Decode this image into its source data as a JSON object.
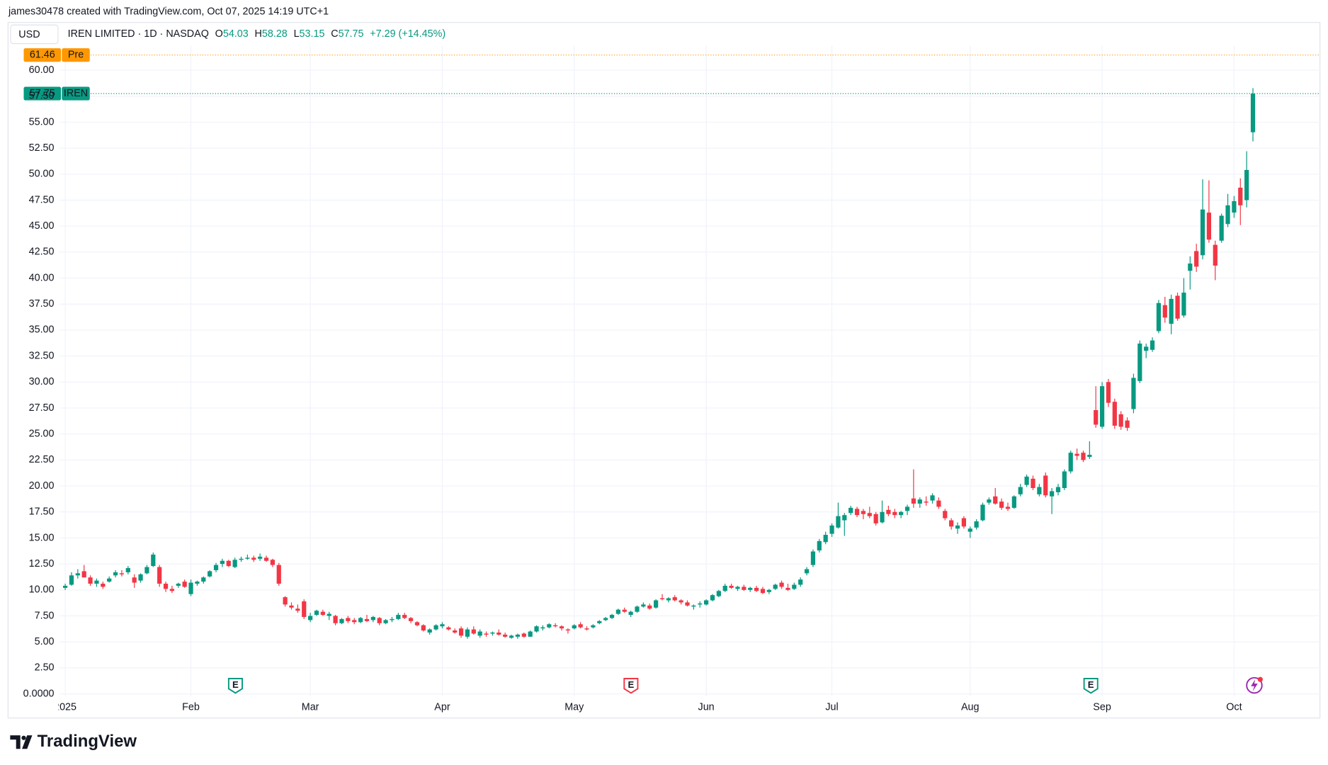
{
  "header": "james30478 created with TradingView.com, Oct 07, 2025 14:19 UTC+1",
  "footer": {
    "brand": "TradingView"
  },
  "chart_data": {
    "type": "candlestick",
    "currency": "USD",
    "symbol": "IREN LIMITED · 1D · NASDAQ",
    "legend": {
      "labels": [
        "O",
        "H",
        "L",
        "C"
      ],
      "values": [
        54.03,
        58.28,
        53.15,
        57.75
      ],
      "change": "+7.29 (+14.45%)"
    },
    "up_color": "#089981",
    "down_color": "#f23645",
    "grid": true,
    "price_lines": [
      {
        "value": 61.46,
        "tag": "Pre",
        "color": "#ff9800"
      },
      {
        "value": 57.75,
        "tag": "IREN",
        "color": "#089981"
      }
    ],
    "events": [
      "E",
      "E",
      "E"
    ],
    "ylim": [
      -0.2,
      62.4
    ],
    "yticks": [
      {
        "value": 0,
        "label": "0.0000"
      },
      {
        "value": 2.5,
        "label": "2.50"
      },
      {
        "value": 5,
        "label": "5.00"
      },
      {
        "value": 7.5,
        "label": "7.50"
      },
      {
        "value": 10,
        "label": "10.00"
      },
      {
        "value": 12.5,
        "label": "12.50"
      },
      {
        "value": 15,
        "label": "15.00"
      },
      {
        "value": 17.5,
        "label": "17.50"
      },
      {
        "value": 20,
        "label": "20.00"
      },
      {
        "value": 22.5,
        "label": "22.50"
      },
      {
        "value": 25,
        "label": "25.00"
      },
      {
        "value": 27.5,
        "label": "27.50"
      },
      {
        "value": 30,
        "label": "30.00"
      },
      {
        "value": 32.5,
        "label": "32.50"
      },
      {
        "value": 35,
        "label": "35.00"
      },
      {
        "value": 37.5,
        "label": "37.50"
      },
      {
        "value": 40,
        "label": "40.00"
      },
      {
        "value": 42.5,
        "label": "42.50"
      },
      {
        "value": 45,
        "label": "45.00"
      },
      {
        "value": 47.5,
        "label": "47.50"
      },
      {
        "value": 50,
        "label": "50.00"
      },
      {
        "value": 52.5,
        "label": "52.50"
      },
      {
        "value": 55,
        "label": "55.00"
      },
      {
        "value": 57.5,
        "label": "57.50"
      },
      {
        "value": 60,
        "label": "60.00"
      }
    ],
    "xticks": [
      {
        "value": 0,
        "label": "2025"
      },
      {
        "value": 20,
        "label": "Feb"
      },
      {
        "value": 39,
        "label": "Mar"
      },
      {
        "value": 60,
        "label": "Apr"
      },
      {
        "value": 81,
        "label": "May"
      },
      {
        "value": 102,
        "label": "Jun"
      },
      {
        "value": 122,
        "label": "Jul"
      },
      {
        "value": 144,
        "label": "Aug"
      },
      {
        "value": 165,
        "label": "Sep"
      },
      {
        "value": 186,
        "label": "Oct"
      }
    ],
    "candles": [
      [
        10.2,
        10.6,
        10.0,
        10.4
      ],
      [
        10.5,
        11.7,
        10.4,
        11.4
      ],
      [
        11.4,
        12.0,
        11.1,
        11.6
      ],
      [
        11.8,
        12.4,
        11.3,
        11.2
      ],
      [
        11.2,
        11.4,
        10.4,
        10.6
      ],
      [
        10.6,
        11.1,
        10.3,
        10.9
      ],
      [
        10.6,
        10.8,
        10.1,
        10.3
      ],
      [
        10.8,
        11.3,
        10.7,
        11.1
      ],
      [
        11.4,
        11.9,
        11.2,
        11.7
      ],
      [
        11.6,
        11.9,
        11.3,
        11.5
      ],
      [
        11.7,
        12.3,
        11.5,
        12.1
      ],
      [
        11.2,
        11.5,
        10.2,
        10.7
      ],
      [
        10.9,
        11.6,
        10.7,
        11.5
      ],
      [
        11.6,
        12.4,
        11.5,
        12.2
      ],
      [
        12.3,
        13.6,
        12.2,
        13.4
      ],
      [
        12.2,
        12.4,
        10.3,
        10.6
      ],
      [
        10.6,
        10.8,
        9.8,
        10.1
      ],
      [
        10.1,
        10.4,
        9.7,
        9.9
      ],
      [
        10.4,
        10.7,
        10.2,
        10.6
      ],
      [
        10.8,
        11.0,
        10.2,
        10.3
      ],
      [
        9.6,
        11.0,
        9.4,
        10.7
      ],
      [
        10.6,
        10.9,
        10.4,
        10.8
      ],
      [
        10.8,
        11.3,
        10.6,
        11.2
      ],
      [
        11.3,
        11.9,
        11.2,
        11.8
      ],
      [
        11.9,
        12.6,
        11.7,
        12.4
      ],
      [
        12.5,
        13.0,
        12.2,
        12.8
      ],
      [
        12.8,
        12.9,
        12.2,
        12.3
      ],
      [
        12.2,
        13.1,
        12.1,
        12.9
      ],
      [
        12.9,
        13.2,
        12.7,
        13.0
      ],
      [
        13.0,
        13.4,
        12.9,
        13.1
      ],
      [
        13.1,
        13.3,
        12.7,
        12.9
      ],
      [
        13.0,
        13.5,
        12.8,
        13.2
      ],
      [
        13.1,
        13.3,
        12.7,
        12.8
      ],
      [
        12.9,
        13.0,
        12.2,
        12.4
      ],
      [
        12.4,
        12.6,
        10.4,
        10.6
      ],
      [
        9.3,
        9.4,
        8.4,
        8.6
      ],
      [
        8.5,
        8.8,
        8.1,
        8.3
      ],
      [
        8.2,
        8.6,
        7.8,
        8.0
      ],
      [
        8.9,
        9.1,
        7.2,
        7.4
      ],
      [
        7.1,
        7.8,
        6.9,
        7.5
      ],
      [
        7.6,
        8.1,
        7.5,
        8.0
      ],
      [
        7.9,
        8.1,
        7.5,
        7.6
      ],
      [
        7.5,
        7.9,
        7.1,
        7.7
      ],
      [
        7.5,
        7.6,
        6.6,
        6.8
      ],
      [
        6.8,
        7.3,
        6.7,
        7.2
      ],
      [
        7.3,
        7.5,
        6.8,
        7.0
      ],
      [
        7.1,
        7.3,
        6.7,
        6.9
      ],
      [
        6.9,
        7.4,
        6.8,
        7.3
      ],
      [
        7.2,
        7.6,
        6.9,
        7.0
      ],
      [
        7.1,
        7.5,
        6.9,
        7.4
      ],
      [
        7.3,
        7.4,
        6.6,
        6.8
      ],
      [
        6.8,
        7.2,
        6.7,
        7.1
      ],
      [
        7.1,
        7.4,
        6.9,
        7.2
      ],
      [
        7.2,
        7.8,
        7.1,
        7.6
      ],
      [
        7.6,
        7.8,
        7.2,
        7.3
      ],
      [
        7.3,
        7.4,
        6.8,
        7.0
      ],
      [
        6.9,
        7.0,
        6.5,
        6.6
      ],
      [
        6.6,
        6.7,
        6.0,
        6.1
      ],
      [
        5.9,
        6.3,
        5.7,
        6.2
      ],
      [
        6.2,
        6.7,
        6.1,
        6.6
      ],
      [
        6.5,
        6.9,
        6.3,
        6.7
      ],
      [
        6.4,
        6.5,
        6.1,
        6.2
      ],
      [
        6.1,
        6.3,
        5.8,
        5.9
      ],
      [
        6.3,
        6.5,
        5.4,
        5.6
      ],
      [
        5.5,
        6.4,
        5.3,
        6.2
      ],
      [
        6.2,
        6.5,
        5.7,
        5.8
      ],
      [
        5.6,
        6.2,
        5.4,
        6.0
      ],
      [
        5.8,
        6.0,
        5.5,
        5.7
      ],
      [
        5.8,
        6.0,
        5.6,
        5.9
      ],
      [
        5.9,
        6.2,
        5.6,
        5.7
      ],
      [
        5.7,
        5.9,
        5.4,
        5.5
      ],
      [
        5.4,
        5.7,
        5.3,
        5.6
      ],
      [
        5.5,
        5.8,
        5.3,
        5.7
      ],
      [
        5.8,
        5.9,
        5.4,
        5.5
      ],
      [
        5.5,
        6.1,
        5.5,
        6.0
      ],
      [
        6.0,
        6.6,
        5.9,
        6.5
      ],
      [
        6.3,
        6.6,
        6.1,
        6.4
      ],
      [
        6.4,
        6.8,
        6.3,
        6.7
      ],
      [
        6.6,
        6.8,
        6.4,
        6.5
      ],
      [
        6.5,
        6.6,
        6.1,
        6.3
      ],
      [
        6.2,
        6.3,
        5.8,
        6.1
      ],
      [
        6.3,
        6.7,
        6.2,
        6.6
      ],
      [
        6.7,
        6.9,
        6.3,
        6.4
      ],
      [
        6.3,
        6.5,
        6.1,
        6.2
      ],
      [
        6.4,
        6.7,
        6.3,
        6.6
      ],
      [
        6.8,
        7.1,
        6.7,
        7.0
      ],
      [
        7.1,
        7.4,
        7.0,
        7.3
      ],
      [
        7.3,
        7.7,
        7.2,
        7.6
      ],
      [
        7.7,
        8.2,
        7.6,
        8.1
      ],
      [
        8.1,
        8.3,
        7.8,
        7.9
      ],
      [
        7.6,
        8.0,
        7.4,
        7.9
      ],
      [
        7.9,
        8.5,
        7.8,
        8.4
      ],
      [
        8.4,
        8.8,
        8.3,
        8.6
      ],
      [
        8.5,
        8.7,
        8.1,
        8.2
      ],
      [
        8.3,
        9.1,
        8.2,
        9.0
      ],
      [
        9.2,
        9.6,
        9.0,
        9.1
      ],
      [
        9.0,
        9.3,
        8.8,
        9.2
      ],
      [
        9.3,
        9.5,
        8.9,
        9.0
      ],
      [
        9.0,
        9.1,
        8.6,
        8.8
      ],
      [
        8.8,
        9.0,
        8.4,
        8.5
      ],
      [
        8.4,
        8.6,
        8.1,
        8.5
      ],
      [
        8.6,
        8.9,
        8.3,
        8.7
      ],
      [
        8.6,
        9.1,
        8.5,
        9.0
      ],
      [
        9.0,
        9.6,
        8.9,
        9.5
      ],
      [
        9.4,
        10.0,
        9.3,
        9.9
      ],
      [
        9.9,
        10.6,
        9.8,
        10.4
      ],
      [
        10.4,
        10.6,
        10.1,
        10.2
      ],
      [
        10.1,
        10.4,
        9.9,
        10.3
      ],
      [
        10.3,
        10.5,
        9.9,
        10.0
      ],
      [
        10.0,
        10.3,
        9.8,
        10.2
      ],
      [
        10.2,
        10.4,
        9.8,
        9.9
      ],
      [
        10.1,
        10.3,
        9.6,
        9.7
      ],
      [
        9.8,
        10.1,
        9.6,
        10.0
      ],
      [
        10.1,
        10.6,
        10.0,
        10.5
      ],
      [
        10.7,
        10.9,
        10.1,
        10.3
      ],
      [
        10.2,
        10.6,
        9.9,
        10.0
      ],
      [
        10.1,
        10.7,
        10.0,
        10.5
      ],
      [
        10.5,
        11.2,
        10.3,
        11.0
      ],
      [
        11.6,
        12.2,
        11.4,
        12.0
      ],
      [
        12.4,
        13.9,
        12.2,
        13.7
      ],
      [
        13.8,
        14.9,
        13.6,
        14.7
      ],
      [
        14.6,
        15.6,
        14.4,
        15.3
      ],
      [
        15.4,
        16.4,
        15.1,
        16.2
      ],
      [
        16.0,
        18.4,
        15.9,
        17.1
      ],
      [
        16.7,
        17.4,
        15.2,
        17.2
      ],
      [
        17.4,
        18.1,
        17.2,
        17.9
      ],
      [
        17.8,
        18.0,
        17.0,
        17.2
      ],
      [
        17.6,
        17.8,
        16.8,
        17.3
      ],
      [
        17.4,
        18.0,
        16.9,
        17.1
      ],
      [
        17.3,
        17.5,
        16.2,
        16.4
      ],
      [
        16.5,
        18.6,
        16.4,
        17.5
      ],
      [
        17.7,
        18.1,
        17.1,
        17.3
      ],
      [
        17.5,
        17.8,
        16.9,
        17.2
      ],
      [
        17.2,
        17.6,
        16.9,
        17.5
      ],
      [
        17.6,
        18.2,
        17.2,
        18.0
      ],
      [
        18.8,
        21.6,
        17.9,
        18.3
      ],
      [
        18.3,
        18.9,
        17.9,
        18.7
      ],
      [
        18.5,
        19.0,
        18.1,
        18.4
      ],
      [
        18.6,
        19.3,
        18.3,
        19.1
      ],
      [
        18.6,
        18.9,
        17.8,
        18.0
      ],
      [
        17.6,
        17.8,
        16.7,
        16.9
      ],
      [
        16.7,
        16.9,
        15.8,
        16.1
      ],
      [
        15.9,
        16.5,
        15.4,
        16.2
      ],
      [
        16.9,
        17.1,
        15.9,
        16.1
      ],
      [
        15.6,
        16.1,
        15.0,
        15.9
      ],
      [
        16.0,
        16.8,
        15.8,
        16.6
      ],
      [
        16.7,
        18.4,
        16.6,
        18.2
      ],
      [
        18.4,
        18.9,
        18.2,
        18.7
      ],
      [
        19.0,
        19.8,
        18.2,
        18.3
      ],
      [
        18.5,
        18.8,
        17.7,
        17.9
      ],
      [
        18.0,
        18.4,
        17.6,
        17.8
      ],
      [
        17.9,
        19.1,
        17.8,
        19.0
      ],
      [
        19.2,
        20.2,
        19.0,
        19.9
      ],
      [
        20.1,
        21.1,
        19.9,
        20.9
      ],
      [
        20.7,
        21.0,
        19.6,
        19.8
      ],
      [
        19.2,
        20.2,
        19.0,
        19.9
      ],
      [
        21.0,
        21.3,
        18.9,
        19.1
      ],
      [
        19.0,
        19.8,
        17.3,
        19.5
      ],
      [
        19.4,
        20.2,
        19.1,
        19.9
      ],
      [
        19.8,
        21.6,
        19.6,
        21.4
      ],
      [
        21.4,
        23.4,
        21.2,
        23.2
      ],
      [
        23.1,
        23.6,
        22.5,
        22.9
      ],
      [
        23.2,
        23.4,
        22.3,
        22.5
      ],
      [
        22.8,
        24.3,
        22.6,
        23.0
      ],
      [
        27.3,
        29.6,
        25.6,
        25.9
      ],
      [
        25.7,
        30.0,
        25.5,
        29.6
      ],
      [
        30.0,
        30.3,
        27.6,
        28.0
      ],
      [
        28.1,
        28.4,
        25.5,
        25.8
      ],
      [
        26.9,
        27.2,
        25.4,
        25.7
      ],
      [
        26.3,
        26.6,
        25.3,
        25.6
      ],
      [
        27.4,
        30.8,
        27.0,
        30.4
      ],
      [
        30.1,
        34.0,
        29.9,
        33.7
      ],
      [
        33.0,
        33.7,
        32.3,
        33.4
      ],
      [
        33.1,
        34.3,
        32.9,
        34.0
      ],
      [
        34.9,
        37.9,
        34.7,
        37.6
      ],
      [
        37.4,
        38.2,
        35.7,
        36.2
      ],
      [
        35.6,
        38.4,
        34.6,
        38.0
      ],
      [
        38.3,
        38.6,
        35.9,
        36.1
      ],
      [
        36.4,
        40.0,
        36.2,
        38.6
      ],
      [
        40.7,
        42.1,
        38.9,
        41.4
      ],
      [
        42.6,
        43.3,
        40.6,
        41.1
      ],
      [
        42.2,
        49.5,
        41.8,
        46.6
      ],
      [
        46.3,
        49.4,
        43.4,
        43.7
      ],
      [
        43.2,
        43.6,
        39.8,
        41.2
      ],
      [
        43.6,
        46.2,
        43.4,
        46.0
      ],
      [
        45.2,
        48.1,
        44.9,
        47.0
      ],
      [
        46.3,
        47.9,
        45.8,
        47.4
      ],
      [
        48.7,
        49.6,
        45.1,
        47.0
      ],
      [
        47.5,
        52.2,
        46.8,
        50.4
      ],
      [
        54.03,
        58.28,
        53.15,
        57.75
      ]
    ]
  }
}
